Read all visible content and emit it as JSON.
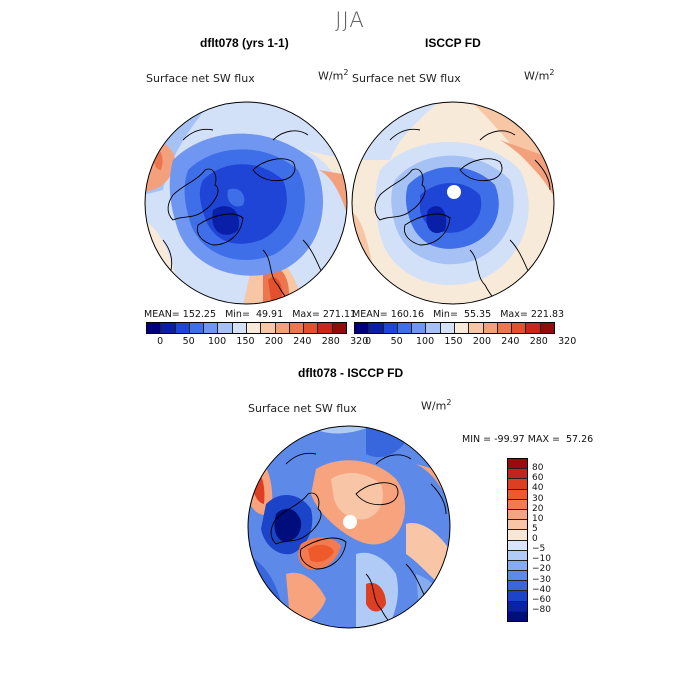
{
  "season": "JJA",
  "panels": [
    {
      "title": "dflt078 (yrs 1-1)",
      "variable": "Surface net SW flux",
      "unit": "W/m",
      "unit_exp": "2",
      "stats": "MEAN= 152.25   Min=  49.91   Max= 271.11"
    },
    {
      "title": "ISCCP FD",
      "variable": "Surface net SW flux",
      "unit": "W/m",
      "unit_exp": "2",
      "stats": "MEAN= 160.16   Min=  55.35   Max= 221.83"
    },
    {
      "title": "dflt078 - ISCCP FD",
      "variable": "Surface net SW flux",
      "unit": "W/m",
      "unit_exp": "2",
      "stats": "MIN = -99.97 MAX =  57.26"
    }
  ],
  "colorbar_top": {
    "labels": [
      "0",
      "50",
      "100",
      "150",
      "200",
      "240",
      "280",
      "320"
    ],
    "colors": [
      "#00007f",
      "#0a1fa8",
      "#1f45d6",
      "#3f6fe8",
      "#6f96f0",
      "#a6c2f5",
      "#d2e0f8",
      "#f8ead8",
      "#f7c6a4",
      "#f3a07c",
      "#ec7650",
      "#e2502d",
      "#c8261a",
      "#900e0a"
    ]
  },
  "colorbar_diff": {
    "labels": [
      "80",
      "60",
      "40",
      "30",
      "20",
      "10",
      "5",
      "0",
      "−5",
      "−10",
      "−20",
      "−30",
      "−40",
      "−60",
      "−80"
    ],
    "colors": [
      "#9b0b0b",
      "#c4231c",
      "#de3e22",
      "#ee5a2c",
      "#f47a4f",
      "#f6a37e",
      "#f8c6a7",
      "#fbe6d3",
      "#d8e6fa",
      "#b0ccf6",
      "#86acf0",
      "#5d8ae8",
      "#3866dd",
      "#1b44c9",
      "#0a23a4",
      "#000e7c"
    ]
  },
  "colors": {
    "land": "#ffffff",
    "ocean_frame": "#000000"
  }
}
